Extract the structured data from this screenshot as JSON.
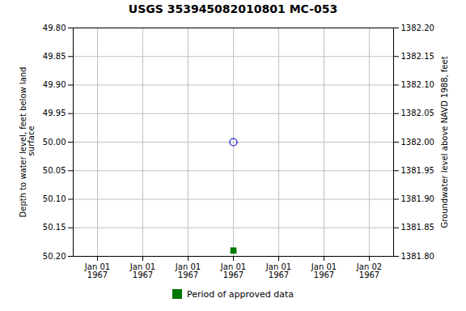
{
  "chart_data": {
    "type": "scatter",
    "title": "USGS 353945082010801 MC-053",
    "ylabel": "Depth to water level, feet below land\n surface",
    "y2label": "Groundwater level above NAVD 1988, feet",
    "categories": [
      "Jan 01\n1967",
      "Jan 01\n1967",
      "Jan 01\n1967",
      "Jan 01\n1967",
      "Jan 01\n1967",
      "Jan 01\n1967",
      "Jan 02\n1967"
    ],
    "ylim": [
      50.2,
      49.8
    ],
    "yticks": [
      {
        "value": 49.8,
        "label": "49.80"
      },
      {
        "value": 49.85,
        "label": "49.85"
      },
      {
        "value": 49.9,
        "label": "49.90"
      },
      {
        "value": 49.95,
        "label": "49.95"
      },
      {
        "value": 50.0,
        "label": "50.00"
      },
      {
        "value": 50.05,
        "label": "50.05"
      },
      {
        "value": 50.1,
        "label": "50.10"
      },
      {
        "value": 50.15,
        "label": "50.15"
      },
      {
        "value": 50.2,
        "label": "50.20"
      }
    ],
    "y2lim": [
      1381.8,
      1382.2
    ],
    "y2ticks": [
      {
        "value": 1382.2,
        "label": "1382.20"
      },
      {
        "value": 1382.15,
        "label": "1382.15"
      },
      {
        "value": 1382.1,
        "label": "1382.10"
      },
      {
        "value": 1382.05,
        "label": "1382.05"
      },
      {
        "value": 1382.0,
        "label": "1382.00"
      },
      {
        "value": 1381.95,
        "label": "1381.95"
      },
      {
        "value": 1381.9,
        "label": "1381.90"
      },
      {
        "value": 1381.85,
        "label": "1381.85"
      },
      {
        "value": 1381.8,
        "label": "1381.80"
      }
    ],
    "grid": true,
    "legend": "bottom",
    "series": [
      {
        "color": "#0000cc",
        "marker": "circle-open",
        "values": [
          null,
          null,
          null,
          50.0,
          null,
          null,
          null
        ]
      },
      {
        "name": "Period of approved data",
        "color": "#007700",
        "marker": "square",
        "values": [
          null,
          null,
          null,
          50.19,
          null,
          null,
          null
        ]
      }
    ]
  }
}
